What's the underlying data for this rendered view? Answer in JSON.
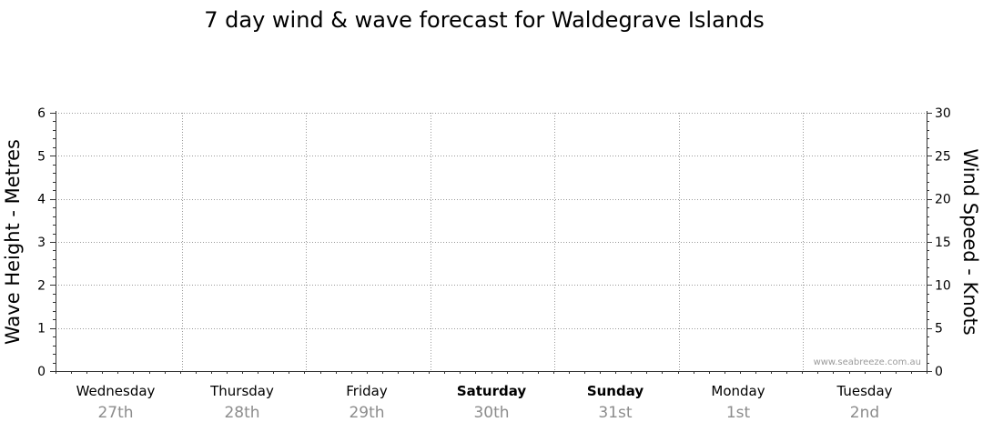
{
  "chart_data": {
    "type": "line",
    "title": "7 day wind & wave forecast for Waldegrave Islands",
    "ylabel_left": "Wave Height - Metres",
    "ylabel_right": "Wind Speed - Knots",
    "ylim_left": [
      0,
      6
    ],
    "ylim_right": [
      0,
      30
    ],
    "yticks_left": [
      "0",
      "1",
      "2",
      "3",
      "4",
      "5",
      "6"
    ],
    "yticks_right": [
      "0",
      "5",
      "10",
      "15",
      "20",
      "25",
      "30"
    ],
    "grid": true,
    "days": [
      {
        "name": "Wednesday",
        "date": "27th",
        "bold": false
      },
      {
        "name": "Thursday",
        "date": "28th",
        "bold": false
      },
      {
        "name": "Friday",
        "date": "29th",
        "bold": false
      },
      {
        "name": "Saturday",
        "date": "30th",
        "bold": true
      },
      {
        "name": "Sunday",
        "date": "31st",
        "bold": true
      },
      {
        "name": "Monday",
        "date": "1st",
        "bold": false
      },
      {
        "name": "Tuesday",
        "date": "2nd",
        "bold": false
      }
    ],
    "series": [],
    "watermark": "www.seabreeze.com.au"
  }
}
